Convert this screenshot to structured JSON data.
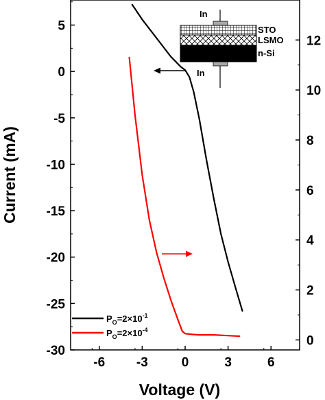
{
  "chart_data": {
    "type": "line",
    "xlabel": "Voltage (V)",
    "ylabel": "Current (mA)",
    "xlim": [
      -8,
      8
    ],
    "ylim_left": [
      -30,
      7.7
    ],
    "ylim_right": [
      -0.4,
      13.6
    ],
    "x_ticks": [
      -6,
      -3,
      0,
      3,
      6
    ],
    "x_tick_labels": [
      "-6",
      "-3",
      "0",
      "3",
      "6"
    ],
    "y_left_ticks": [
      5,
      0,
      -5,
      -10,
      -15,
      -20,
      -25,
      -30
    ],
    "y_left_tick_labels": [
      "5",
      "0",
      "-5",
      "-10",
      "-15",
      "-20",
      "-25",
      "-30"
    ],
    "y_right_ticks": [
      12,
      10,
      8,
      6,
      4,
      2,
      0
    ],
    "y_right_tick_labels": [
      "12",
      "10",
      "8",
      "6",
      "4",
      "2",
      "0"
    ],
    "legend_location": "bottom-left",
    "series": [
      {
        "name_prefix": "P",
        "name_subscript": "O",
        "name_value": "=2×10",
        "name_exponent": "-1",
        "axis": "left",
        "color": "#000000",
        "x": [
          -3.7,
          -3.0,
          -2.0,
          -1.0,
          -0.3,
          0.0,
          0.3,
          0.6,
          1.0,
          1.5,
          2.0,
          2.5,
          3.0,
          3.5,
          4.0
        ],
        "y": [
          7.2,
          5.6,
          3.6,
          1.6,
          0.5,
          0.15,
          -0.6,
          -2.2,
          -5.2,
          -9.6,
          -13.7,
          -17.5,
          -20.5,
          -23.2,
          -25.8
        ]
      },
      {
        "name_prefix": "P",
        "name_subscript": "O",
        "name_value": "=2×10",
        "name_exponent": "-4",
        "axis": "right",
        "color": "#ff0000",
        "x": [
          -3.9,
          -3.5,
          -3.0,
          -2.5,
          -2.0,
          -1.5,
          -1.0,
          -0.5,
          -0.2,
          0.0,
          0.5,
          1.0,
          2.0,
          3.0,
          3.8
        ],
        "y": [
          11.3,
          9.0,
          6.6,
          4.8,
          3.5,
          2.5,
          1.6,
          0.8,
          0.35,
          0.25,
          0.22,
          0.2,
          0.2,
          0.17,
          0.15
        ]
      }
    ],
    "annotations": {
      "left_arrow_color": "#000000",
      "right_arrow_color": "#ff0000"
    },
    "inset": {
      "top_contact": "In",
      "bottom_contact": "In",
      "layers": [
        "STO",
        "LSMO",
        "n-Si"
      ]
    }
  }
}
